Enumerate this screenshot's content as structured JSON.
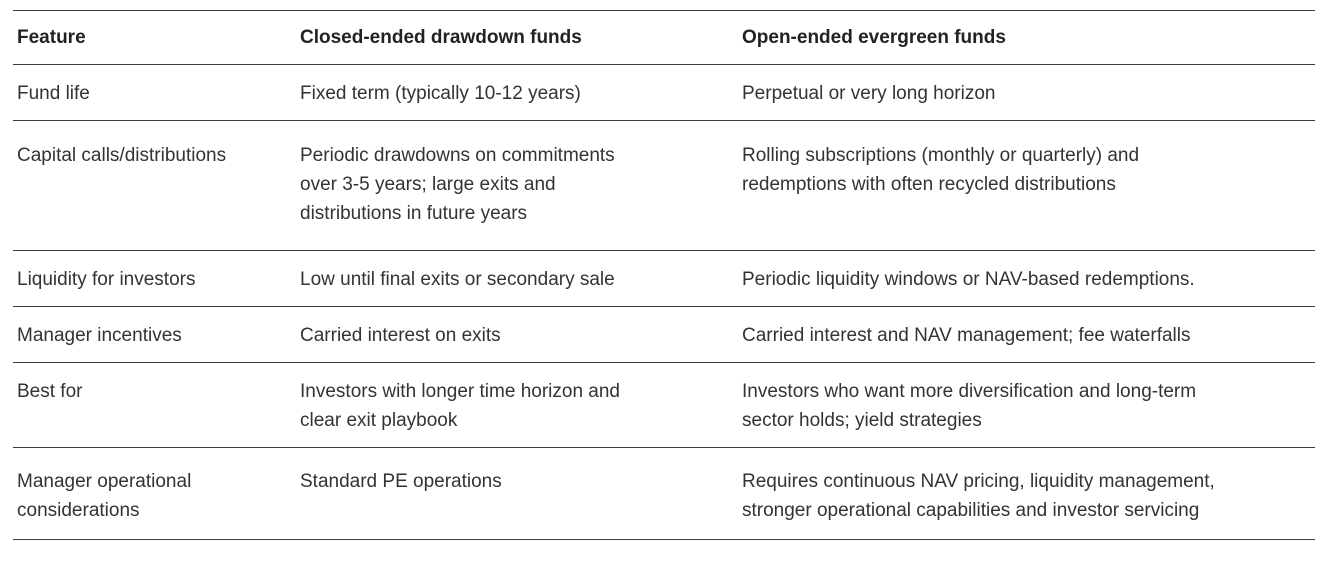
{
  "colors": {
    "background": "#ffffff",
    "text": "#343332",
    "header_text": "#232220",
    "rule": "#3f3f3f"
  },
  "table": {
    "headers": {
      "feature": "Feature",
      "closed_ended": "Closed-ended drawdown funds",
      "open_ended": "Open-ended evergreen funds"
    },
    "rows": [
      {
        "feature": "Fund life",
        "closed_ended": "Fixed term (typically 10-12 years)",
        "open_ended": "Perpetual or very long horizon"
      },
      {
        "feature": "Capital calls/distributions",
        "closed_ended": "Periodic drawdowns on commitments over 3-5 years; large exits and distributions in future years",
        "open_ended": "Rolling subscriptions (monthly or quarterly) and redemptions with often recycled distributions"
      },
      {
        "feature": "Liquidity for investors",
        "closed_ended": "Low until final exits or secondary sale",
        "open_ended": "Periodic liquidity windows or NAV-based redemptions."
      },
      {
        "feature": "Manager incentives",
        "closed_ended": "Carried interest on exits",
        "open_ended": "Carried interest and NAV management; fee waterfalls"
      },
      {
        "feature": "Best for",
        "closed_ended": "Investors with longer time horizon and clear exit playbook",
        "open_ended": "Investors who want more diversification and long-term sector holds; yield strategies"
      },
      {
        "feature": "Manager operational considerations",
        "closed_ended": "Standard PE operations",
        "open_ended": "Requires continuous NAV pricing, liquidity management, stronger operational capabilities and investor servicing"
      }
    ]
  }
}
